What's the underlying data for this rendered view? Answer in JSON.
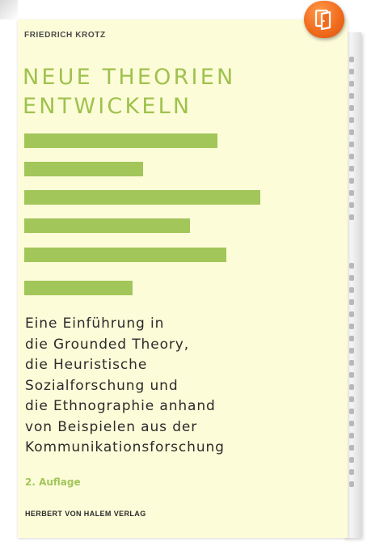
{
  "cover": {
    "author": "FRIEDRICH KROTZ",
    "title_lines": [
      "NEUE THEORIEN",
      "ENTWICKELN"
    ],
    "subtitle_lines": [
      "Eine Einführung in",
      "die Grounded Theory,",
      "die Heuristische",
      "Sozialforschung und",
      "die Ethnographie anhand",
      "von Beispielen aus der",
      "Kommunikationsforschung"
    ],
    "edition": "2. Auflage",
    "publisher": "HERBERT VON HALEM VERLAG"
  },
  "badge": {
    "icon": "open-book-icon"
  },
  "colors": {
    "cover_background": "#fdfcd9",
    "title_green": "#9fc24d",
    "bar_green": "#a2c65a",
    "text_dark": "#2b2b2b",
    "badge_orange": "#f26c1f"
  }
}
